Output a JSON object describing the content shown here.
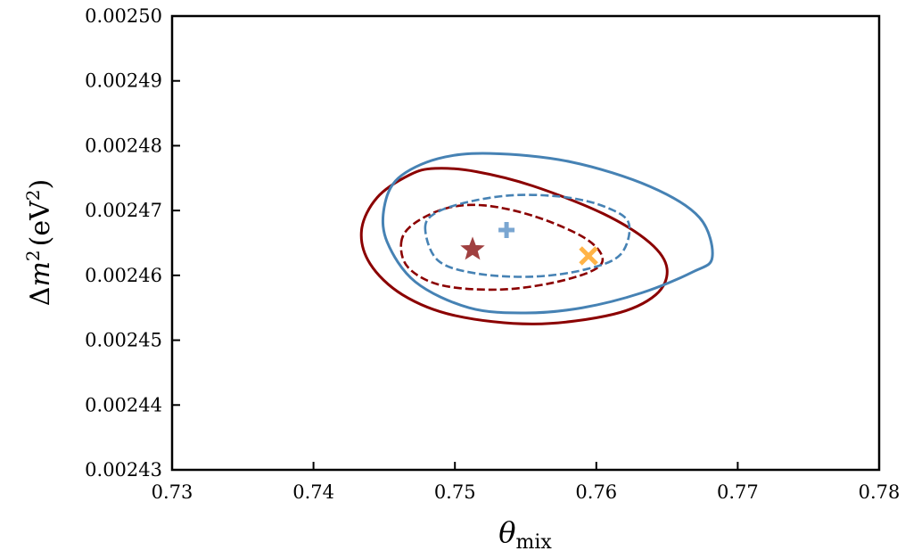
{
  "chart_data": {
    "type": "scatter",
    "title": "",
    "xlabel": "θ",
    "xlabel_sub": "mix",
    "ylabel": "Δm² (eV²)",
    "ylabel_parts": {
      "delta": "Δ",
      "var": "m",
      "sup": "2",
      "unit_open": "(eV",
      "unit_sup": "2",
      "unit_close": ")"
    },
    "xlim": [
      0.73,
      0.78
    ],
    "ylim": [
      0.00243,
      0.0025
    ],
    "xticks": [
      0.73,
      0.74,
      0.75,
      0.76,
      0.77,
      0.78
    ],
    "xtick_labels": [
      "0.73",
      "0.74",
      "0.75",
      "0.76",
      "0.77",
      "0.78"
    ],
    "yticks": [
      0.00243,
      0.00244,
      0.00245,
      0.00246,
      0.00247,
      0.00248,
      0.00249,
      0.0025
    ],
    "ytick_labels": [
      "0.00243",
      "0.00244",
      "0.00245",
      "0.00246",
      "0.00247",
      "0.00248",
      "0.00249",
      "0.00250"
    ],
    "grid": false,
    "contours": [
      {
        "id": "red-outer",
        "color": "#8b0000",
        "style": "solid",
        "points": [
          [
            0.7434,
            0.002467
          ],
          [
            0.7445,
            0.002472
          ],
          [
            0.7468,
            0.0024755
          ],
          [
            0.7486,
            0.0024765
          ],
          [
            0.7515,
            0.002476
          ],
          [
            0.7555,
            0.0024738
          ],
          [
            0.7605,
            0.0024695
          ],
          [
            0.7638,
            0.002465
          ],
          [
            0.765,
            0.002461
          ],
          [
            0.7642,
            0.002457
          ],
          [
            0.7612,
            0.002454
          ],
          [
            0.7556,
            0.0024525
          ],
          [
            0.75,
            0.0024538
          ],
          [
            0.7463,
            0.002457
          ],
          [
            0.744,
            0.0024618
          ]
        ]
      },
      {
        "id": "red-inner",
        "color": "#8b0000",
        "style": "dashed",
        "points": [
          [
            0.7462,
            0.002465
          ],
          [
            0.747,
            0.0024678
          ],
          [
            0.7493,
            0.0024703
          ],
          [
            0.752,
            0.0024708
          ],
          [
            0.7555,
            0.0024692
          ],
          [
            0.759,
            0.002466
          ],
          [
            0.7604,
            0.002463
          ],
          [
            0.7598,
            0.0024608
          ],
          [
            0.7568,
            0.0024588
          ],
          [
            0.753,
            0.0024578
          ],
          [
            0.749,
            0.0024585
          ],
          [
            0.7467,
            0.0024612
          ]
        ]
      },
      {
        "id": "blue-outer",
        "color": "#4682b4",
        "style": "solid",
        "points": [
          [
            0.745,
            0.0024705
          ],
          [
            0.746,
            0.002475
          ],
          [
            0.7488,
            0.002478
          ],
          [
            0.7525,
            0.0024788
          ],
          [
            0.7582,
            0.0024775
          ],
          [
            0.7638,
            0.0024737
          ],
          [
            0.7673,
            0.0024689
          ],
          [
            0.7682,
            0.0024628
          ],
          [
            0.7668,
            0.0024605
          ],
          [
            0.7632,
            0.0024573
          ],
          [
            0.759,
            0.002455
          ],
          [
            0.755,
            0.0024542
          ],
          [
            0.751,
            0.002455
          ],
          [
            0.7472,
            0.002459
          ],
          [
            0.7452,
            0.0024652
          ]
        ]
      },
      {
        "id": "blue-inner",
        "color": "#4682b4",
        "style": "dashed",
        "points": [
          [
            0.7479,
            0.0024672
          ],
          [
            0.7487,
            0.0024697
          ],
          [
            0.7513,
            0.0024715
          ],
          [
            0.7545,
            0.0024724
          ],
          [
            0.758,
            0.002472
          ],
          [
            0.7607,
            0.0024705
          ],
          [
            0.7623,
            0.002468
          ],
          [
            0.7617,
            0.0024632
          ],
          [
            0.7592,
            0.0024609
          ],
          [
            0.7555,
            0.0024598
          ],
          [
            0.7515,
            0.0024603
          ],
          [
            0.7488,
            0.0024623
          ]
        ]
      }
    ],
    "markers": [
      {
        "id": "red-star",
        "shape": "star",
        "color": "#a04040",
        "x": 0.75125,
        "y": 0.002464
      },
      {
        "id": "blue-plus",
        "shape": "plus",
        "color": "#7aa6d1",
        "x": 0.75365,
        "y": 0.002467
      },
      {
        "id": "orange-x",
        "shape": "x",
        "color": "#ffb347",
        "x": 0.75945,
        "y": 0.002463
      }
    ]
  }
}
